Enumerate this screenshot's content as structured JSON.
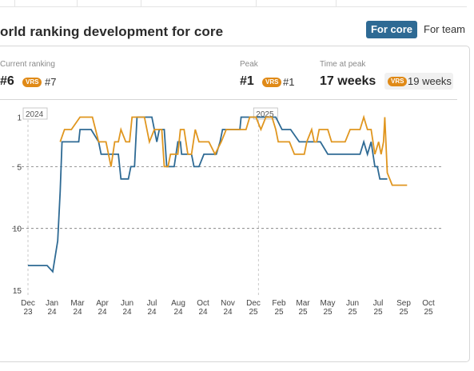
{
  "header": {
    "title": "orld ranking development for core",
    "toggle_active": "For core",
    "toggle_inactive": "For team"
  },
  "stats": {
    "current": {
      "label": "Current ranking",
      "value": "#6",
      "badge": "VRS",
      "compare": "#7"
    },
    "peak": {
      "label": "Peak",
      "value": "#1",
      "badge": "VRS",
      "compare": "#1"
    },
    "time_at_peak": {
      "label": "Time at peak",
      "value": "17 weeks",
      "badge": "VRS",
      "compare": "19 weeks"
    }
  },
  "colors": {
    "core_line": "#2e6a94",
    "vrs_line": "#e0961f",
    "badge": "#e08a17",
    "toggle": "#2e6a94"
  },
  "chart_data": {
    "type": "line",
    "y_inverted": true,
    "ylim": [
      15,
      1
    ],
    "yticks": [
      "1",
      "5",
      "10",
      "15"
    ],
    "year_markers": [
      "2024",
      "2025"
    ],
    "xticks": [
      {
        "m": "Dec",
        "y": "23"
      },
      {
        "m": "Jan",
        "y": "24"
      },
      {
        "m": "Mar",
        "y": "24"
      },
      {
        "m": "Apr",
        "y": "24"
      },
      {
        "m": "Jun",
        "y": "24"
      },
      {
        "m": "Jul",
        "y": "24"
      },
      {
        "m": "Aug",
        "y": "24"
      },
      {
        "m": "Oct",
        "y": "24"
      },
      {
        "m": "Nov",
        "y": "24"
      },
      {
        "m": "Dec",
        "y": "25"
      },
      {
        "m": "Feb",
        "y": "25"
      },
      {
        "m": "Mar",
        "y": "25"
      },
      {
        "m": "May",
        "y": "25"
      },
      {
        "m": "Jun",
        "y": "25"
      },
      {
        "m": "Jul",
        "y": "25"
      },
      {
        "m": "Sep",
        "y": "25"
      },
      {
        "m": "Oct",
        "y": "25"
      }
    ],
    "series": [
      {
        "key": "core",
        "color": "#2e6a94",
        "points": [
          [
            0,
            13
          ],
          [
            1,
            13
          ],
          [
            1.55,
            13
          ],
          [
            2,
            13.5
          ],
          [
            2.4,
            11
          ],
          [
            2.6,
            7
          ],
          [
            2.75,
            3
          ],
          [
            3.1,
            3
          ],
          [
            3.7,
            3
          ],
          [
            4.1,
            3
          ],
          [
            4.2,
            2
          ],
          [
            5,
            2
          ],
          [
            5.1,
            2
          ],
          [
            5.7,
            3
          ],
          [
            5.9,
            4
          ],
          [
            7.3,
            4
          ],
          [
            7.5,
            6
          ],
          [
            8.1,
            6
          ],
          [
            8.3,
            5
          ],
          [
            8.6,
            5
          ],
          [
            8.8,
            1
          ],
          [
            10,
            1
          ],
          [
            10.4,
            3
          ],
          [
            10.6,
            2
          ],
          [
            11,
            2
          ],
          [
            11.2,
            5
          ],
          [
            11.8,
            5
          ],
          [
            12.1,
            3
          ],
          [
            12.3,
            3
          ],
          [
            12.4,
            4
          ],
          [
            13.2,
            4
          ],
          [
            13.4,
            5
          ],
          [
            13.8,
            5
          ],
          [
            14.2,
            4
          ],
          [
            14.8,
            4
          ],
          [
            15.2,
            4
          ],
          [
            15.5,
            3
          ],
          [
            15.7,
            2
          ],
          [
            16.5,
            2
          ],
          [
            17.1,
            2
          ],
          [
            17.2,
            1
          ],
          [
            18,
            1
          ],
          [
            20,
            1
          ],
          [
            20.5,
            2
          ],
          [
            21.2,
            2
          ],
          [
            21.9,
            3
          ],
          [
            23,
            3
          ],
          [
            23.6,
            3
          ],
          [
            24.2,
            4
          ],
          [
            25.2,
            4
          ],
          [
            26.8,
            4
          ],
          [
            27.1,
            3
          ],
          [
            27.4,
            4
          ],
          [
            27.7,
            3
          ],
          [
            28,
            5
          ],
          [
            28.2,
            5
          ],
          [
            28.4,
            6
          ],
          [
            29,
            6
          ]
        ]
      },
      {
        "key": "vrs",
        "color": "#e0961f",
        "points": [
          [
            2.6,
            3
          ],
          [
            2.95,
            2
          ],
          [
            3.5,
            2
          ],
          [
            4.2,
            1
          ],
          [
            5.2,
            1
          ],
          [
            5.7,
            3
          ],
          [
            6.3,
            3
          ],
          [
            6.7,
            5
          ],
          [
            7,
            3
          ],
          [
            7.3,
            3
          ],
          [
            7.5,
            2
          ],
          [
            7.9,
            3
          ],
          [
            8.2,
            3
          ],
          [
            8.4,
            1
          ],
          [
            9.4,
            1
          ],
          [
            9.8,
            3
          ],
          [
            10.2,
            2
          ],
          [
            10.8,
            2
          ],
          [
            11,
            5
          ],
          [
            11.3,
            5
          ],
          [
            11.5,
            4
          ],
          [
            12.1,
            4
          ],
          [
            12.3,
            2
          ],
          [
            12.6,
            2
          ],
          [
            12.9,
            4
          ],
          [
            13.2,
            4
          ],
          [
            13.5,
            2
          ],
          [
            13.8,
            3
          ],
          [
            14.6,
            3
          ],
          [
            15.1,
            4
          ],
          [
            15.6,
            3
          ],
          [
            16,
            2
          ],
          [
            16.5,
            2
          ],
          [
            17.6,
            2
          ],
          [
            17.9,
            1
          ],
          [
            18.4,
            1
          ],
          [
            18.8,
            2
          ],
          [
            19.2,
            1
          ],
          [
            19.7,
            1
          ],
          [
            20,
            2
          ],
          [
            20.2,
            3
          ],
          [
            21.1,
            3
          ],
          [
            21.5,
            4
          ],
          [
            22.3,
            4
          ],
          [
            22.5,
            3
          ],
          [
            22.9,
            2
          ],
          [
            23.1,
            3
          ],
          [
            23.3,
            3
          ],
          [
            23.5,
            2
          ],
          [
            24.2,
            2
          ],
          [
            24.5,
            3
          ],
          [
            25.6,
            3
          ],
          [
            26,
            2
          ],
          [
            26.5,
            2
          ],
          [
            26.8,
            2
          ],
          [
            27.1,
            1
          ],
          [
            27.4,
            2
          ],
          [
            27.7,
            2
          ],
          [
            28,
            4
          ],
          [
            28.3,
            3
          ],
          [
            28.5,
            4
          ],
          [
            28.7,
            3
          ],
          [
            28.8,
            1
          ],
          [
            29,
            5.5
          ],
          [
            29.4,
            6.5
          ],
          [
            30.6,
            6.5
          ]
        ]
      }
    ]
  }
}
